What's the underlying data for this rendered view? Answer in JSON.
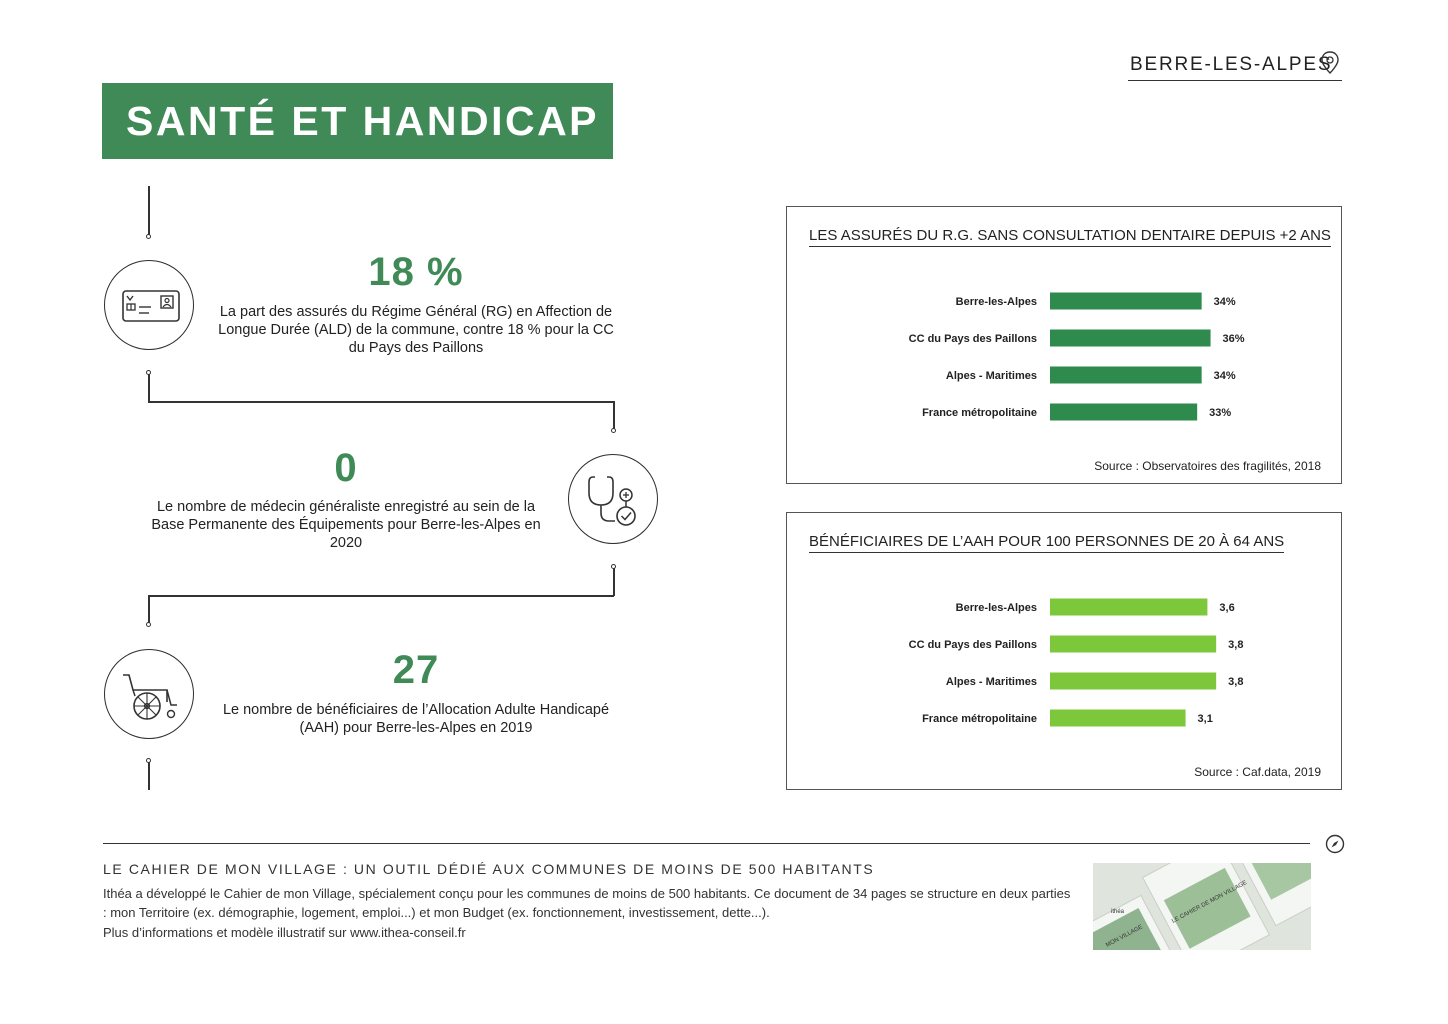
{
  "header": {
    "location": "BERRE-LES-ALPES"
  },
  "title": "SANTÉ ET HANDICAP",
  "stats": [
    {
      "value": "18 %",
      "description": "La part des assurés du Régime Général (RG) en Affection de Longue Durée (ALD) de la commune, contre 18 % pour la CC du Pays des Paillons",
      "icon": "health-card-icon"
    },
    {
      "value": "0",
      "description": "Le nombre de médecin généraliste enregistré au sein de la Base Permanente des Équipements pour Berre-les-Alpes en 2020",
      "icon": "stethoscope-icon"
    },
    {
      "value": "27",
      "description": "Le nombre de bénéficiaires de l’Allocation Adulte Handicapé (AAH) pour Berre-les-Alpes en 2019",
      "icon": "wheelchair-icon"
    }
  ],
  "chart_data": [
    {
      "type": "bar",
      "orientation": "horizontal",
      "title": "LES ASSURÉS DU R.G. SANS CONSULTATION DENTAIRE DEPUIS +2 ANS",
      "categories": [
        "Berre-les-Alpes",
        "CC du Pays des Paillons",
        "Alpes - Maritimes",
        "France métropolitaine"
      ],
      "values": [
        34,
        36,
        34,
        33
      ],
      "value_labels": [
        "34%",
        "36%",
        "34%",
        "33%"
      ],
      "source": "Source : Observatoires des fragilités, 2018",
      "color": "#2f8a4e"
    },
    {
      "type": "bar",
      "orientation": "horizontal",
      "title": "BÉNÉFICIAIRES DE L’AAH POUR 100 PERSONNES DE 20 À 64 ANS",
      "categories": [
        "Berre-les-Alpes",
        "CC du Pays des Paillons",
        "Alpes - Maritimes",
        "France métropolitaine"
      ],
      "values": [
        3.6,
        3.8,
        3.8,
        3.1
      ],
      "value_labels": [
        "3,6",
        "3,8",
        "3,8",
        "3,1"
      ],
      "source": "Source : Caf.data, 2019",
      "color": "#7cc83a"
    }
  ],
  "footer": {
    "heading": "LE CAHIER DE MON VILLAGE : UN OUTIL DÉDIÉ AUX COMMUNES DE MOINS DE 500 HABITANTS",
    "paragraph": "Ithéa a développé le Cahier de mon Village, spécialement conçu pour les communes de moins de 500 habitants. Ce document de 34 pages se structure en deux parties : mon Territoire (ex. démographie, logement, emploi...) et mon Budget (ex. fonctionnement, investissement, dette...).",
    "more_info": "Plus d’informations et modèle illustratif sur www.ithea-conseil.fr",
    "thumbnail_texts": [
      "ithéa",
      "LE CAHIER DE MON VILLAGE",
      "MON VILLAGE"
    ]
  },
  "colors": {
    "brand_green": "#3f8a57",
    "bar_dark_green": "#2f8a4e",
    "bar_light_green": "#7cc83a"
  }
}
